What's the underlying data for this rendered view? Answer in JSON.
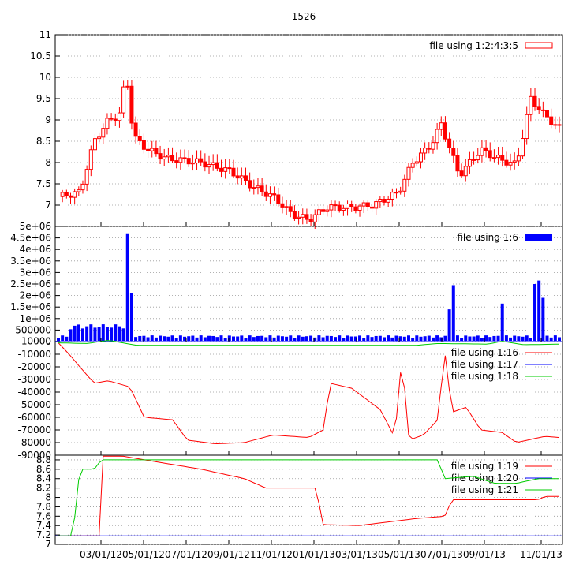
{
  "title": "1526",
  "xaxis": {
    "labels": [
      "03/01/12",
      "05/01/12",
      "07/01/12",
      "09/01/12",
      "11/01/12",
      "01/01/13",
      "03/01/13",
      "05/01/13",
      "07/01/13",
      "09/01/13",
      "11/01/13"
    ]
  },
  "chart_data": [
    {
      "type": "candlestick",
      "legend": [
        "file using 1:2:4:3:5"
      ],
      "legend_position": "top-right",
      "grid": true,
      "ylim": [
        6.5,
        11
      ],
      "yticks": [
        "7",
        "7.5",
        "8",
        "8.5",
        "9",
        "9.5",
        "10",
        "10.5",
        "11"
      ],
      "series_color": "#ff0000"
    },
    {
      "type": "bar",
      "legend": [
        "file using 1:6"
      ],
      "legend_position": "top-right",
      "grid": true,
      "ylim": [
        0,
        5000000
      ],
      "yticks": [
        "10000",
        "500000",
        "1e+06",
        "1.5e+06",
        "2e+06",
        "2.5e+06",
        "3e+06",
        "3.5e+06",
        "4e+06",
        "4.5e+06",
        "5e+06"
      ],
      "series_color": "#0000ff"
    },
    {
      "type": "line",
      "legend": [
        "file using 1:16",
        "file using 1:17",
        "file using 1:18"
      ],
      "legend_position": "top-right",
      "grid": true,
      "ylim": [
        -90000,
        0
      ],
      "yticks": [
        "0",
        "-10000",
        "-20000",
        "-30000",
        "-40000",
        "-50000",
        "-60000",
        "-70000",
        "-80000",
        "-90000"
      ],
      "series_colors": [
        "#ff0000",
        "#0000ff",
        "#00cc00"
      ]
    },
    {
      "type": "line",
      "legend": [
        "file using 1:19",
        "file using 1:20",
        "file using 1:21"
      ],
      "legend_position": "top-right",
      "grid": true,
      "ylim": [
        7,
        8.9
      ],
      "yticks": [
        "7",
        "7.2",
        "7.4",
        "7.6",
        "7.8",
        "8",
        "8.2",
        "8.4",
        "8.6",
        "8.8"
      ],
      "series_colors": [
        "#ff0000",
        "#0000ff",
        "#00cc00"
      ]
    }
  ]
}
